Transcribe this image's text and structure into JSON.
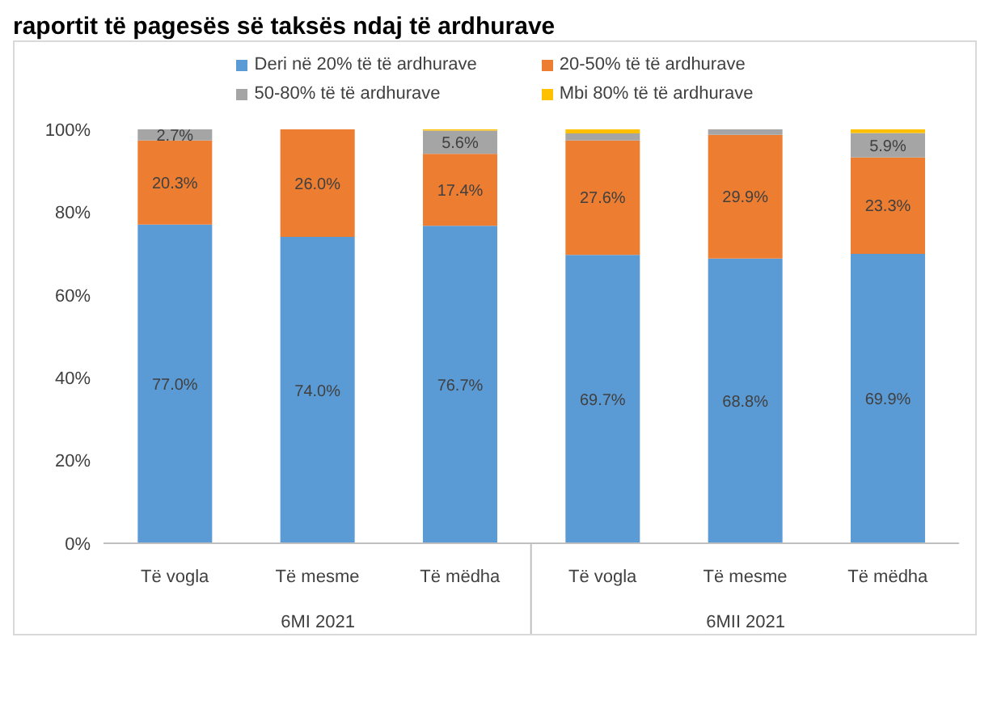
{
  "chart_data": {
    "type": "bar",
    "title": "raportit të pagesës së taksës ndaj të ardhurave",
    "stacked": true,
    "categories": [
      "Të vogla",
      "Të mesme",
      "Të mëdha",
      "Të vogla",
      "Të mesme",
      "Të mëdha"
    ],
    "series": [
      {
        "name": "Deri në 20% të të ardhurave",
        "color": "#5b9bd5",
        "values": [
          77.0,
          74.0,
          76.7,
          69.7,
          68.8,
          69.9
        ],
        "value_labels": [
          "77.0%",
          "74.0%",
          "76.7%",
          "69.7%",
          "68.8%",
          "69.9%"
        ]
      },
      {
        "name": "20-50% të të ardhurave",
        "color": "#ed7d31",
        "values": [
          20.3,
          26.0,
          17.4,
          27.6,
          29.9,
          23.3
        ],
        "value_labels": [
          "20.3%",
          "26.0%",
          "17.4%",
          "27.6%",
          "29.9%",
          "23.3%"
        ]
      },
      {
        "name": "50-80% të të ardhurave",
        "color": "#a5a5a5",
        "values": [
          2.7,
          0,
          5.6,
          1.7,
          1.3,
          5.9
        ],
        "value_labels": [
          "2.7%",
          null,
          "5.6%",
          null,
          null,
          "5.9%"
        ]
      },
      {
        "name": "Mbi 80% të të ardhurave",
        "color": "#ffc000",
        "values": [
          0,
          0,
          0.3,
          1.0,
          0,
          0.9
        ]
      }
    ],
    "ylim": [
      0,
      100
    ],
    "yticks": [
      {
        "value": 0,
        "label": "0%"
      },
      {
        "value": 20,
        "label": "20%"
      },
      {
        "value": 40,
        "label": "40%"
      },
      {
        "value": 60,
        "label": "60%"
      },
      {
        "value": 80,
        "label": "80%"
      },
      {
        "value": 100,
        "label": "100%"
      }
    ],
    "annotations": [
      "6MI 2021",
      "6MII 2021"
    ],
    "legend": "top",
    "grid": false
  }
}
